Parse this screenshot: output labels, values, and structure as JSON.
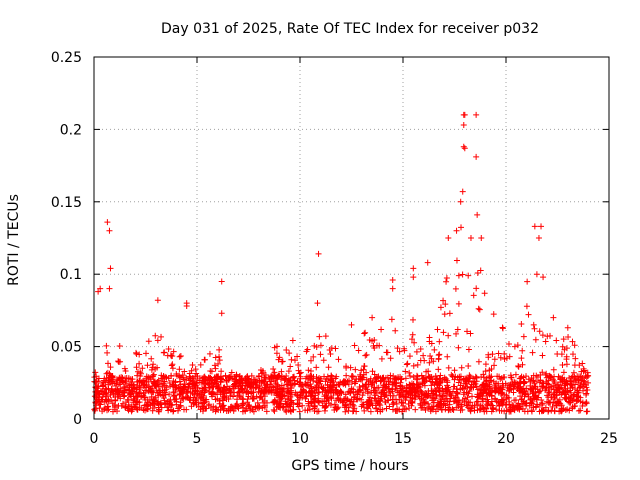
{
  "chart_data": {
    "type": "scatter",
    "title": "Day 031 of 2025, Rate Of TEC Index for receiver p032",
    "xlabel": "GPS time / hours",
    "ylabel": "ROTI / TECUs",
    "xlim": [
      0,
      25
    ],
    "ylim": [
      0,
      0.25
    ],
    "xticks": [
      "0",
      "5",
      "10",
      "15",
      "20",
      "25"
    ],
    "yticks": [
      "0",
      "0.05",
      "0.1",
      "0.15",
      "0.2",
      "0.25"
    ],
    "grid": true,
    "marker": "+",
    "color": "#ff0000",
    "note": "Dense per-sample scatter; envelope (upper values) listed per hour plus notable outliers",
    "series": [
      {
        "name": "ROTI",
        "baseline_range": [
          0.005,
          0.03
        ],
        "hourly_envelope_x": [
          0,
          0.5,
          1,
          1.5,
          2,
          2.5,
          3,
          3.5,
          4,
          4.5,
          5,
          5.5,
          6,
          6.5,
          7,
          7.5,
          8,
          8.5,
          9,
          9.5,
          10,
          10.5,
          11,
          11.5,
          12,
          12.5,
          13,
          13.5,
          14,
          14.5,
          15,
          15.5,
          16,
          16.5,
          17,
          17.5,
          18,
          18.5,
          19,
          19.5,
          20,
          20.5,
          21,
          21.5,
          22,
          22.5,
          23,
          23.5,
          24
        ],
        "hourly_envelope_y": [
          0.04,
          0.06,
          0.065,
          0.04,
          0.045,
          0.06,
          0.06,
          0.055,
          0.05,
          0.045,
          0.05,
          0.045,
          0.05,
          0.035,
          0.03,
          0.03,
          0.035,
          0.045,
          0.055,
          0.06,
          0.05,
          0.05,
          0.07,
          0.05,
          0.06,
          0.06,
          0.06,
          0.06,
          0.065,
          0.07,
          0.06,
          0.07,
          0.06,
          0.06,
          0.09,
          0.12,
          0.14,
          0.12,
          0.09,
          0.07,
          0.06,
          0.05,
          0.1,
          0.08,
          0.06,
          0.06,
          0.06,
          0.05,
          0.035
        ],
        "outliers": [
          {
            "x": 0.2,
            "y": 0.088
          },
          {
            "x": 0.3,
            "y": 0.09
          },
          {
            "x": 0.65,
            "y": 0.136
          },
          {
            "x": 0.75,
            "y": 0.13
          },
          {
            "x": 0.8,
            "y": 0.104
          },
          {
            "x": 0.75,
            "y": 0.09
          },
          {
            "x": 3.1,
            "y": 0.082
          },
          {
            "x": 4.5,
            "y": 0.08
          },
          {
            "x": 4.5,
            "y": 0.078
          },
          {
            "x": 6.2,
            "y": 0.095
          },
          {
            "x": 6.2,
            "y": 0.073
          },
          {
            "x": 10.9,
            "y": 0.114
          },
          {
            "x": 10.85,
            "y": 0.08
          },
          {
            "x": 12.5,
            "y": 0.065
          },
          {
            "x": 13.5,
            "y": 0.07
          },
          {
            "x": 14.5,
            "y": 0.096
          },
          {
            "x": 14.5,
            "y": 0.09
          },
          {
            "x": 15.5,
            "y": 0.104
          },
          {
            "x": 15.5,
            "y": 0.098
          },
          {
            "x": 16.2,
            "y": 0.108
          },
          {
            "x": 17.2,
            "y": 0.125
          },
          {
            "x": 17.6,
            "y": 0.13
          },
          {
            "x": 17.9,
            "y": 0.157
          },
          {
            "x": 17.8,
            "y": 0.15
          },
          {
            "x": 17.95,
            "y": 0.21
          },
          {
            "x": 18.0,
            "y": 0.21
          },
          {
            "x": 17.95,
            "y": 0.203
          },
          {
            "x": 17.95,
            "y": 0.188
          },
          {
            "x": 18.0,
            "y": 0.187
          },
          {
            "x": 18.55,
            "y": 0.21
          },
          {
            "x": 18.55,
            "y": 0.181
          },
          {
            "x": 18.6,
            "y": 0.141
          },
          {
            "x": 18.8,
            "y": 0.125
          },
          {
            "x": 18.3,
            "y": 0.125
          },
          {
            "x": 21.4,
            "y": 0.133
          },
          {
            "x": 21.7,
            "y": 0.133
          },
          {
            "x": 21.6,
            "y": 0.125
          },
          {
            "x": 21.5,
            "y": 0.1
          },
          {
            "x": 21.8,
            "y": 0.098
          },
          {
            "x": 22.3,
            "y": 0.07
          },
          {
            "x": 23.0,
            "y": 0.063
          }
        ]
      }
    ]
  }
}
